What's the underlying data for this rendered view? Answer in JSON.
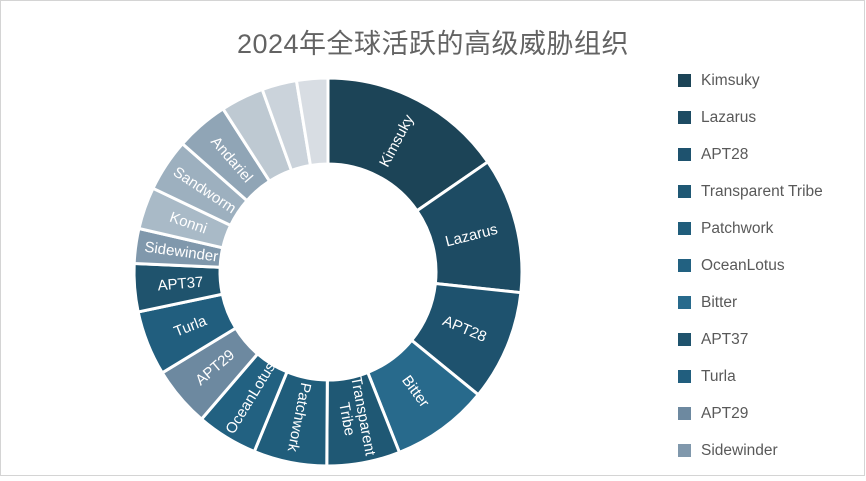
{
  "window": {
    "border_color": "#d4d4d4",
    "background": "#ffffff"
  },
  "title": {
    "text": "2024年全球活跃的高级威胁组织",
    "color": "#636363"
  },
  "chart_data": {
    "type": "pie",
    "subtype": "donut",
    "title": "2024年全球活跃的高级威胁组织",
    "rotation_start": "top",
    "direction": "clockwise",
    "legend_position": "right",
    "slice_label_color": "#ffffff",
    "slices": [
      {
        "label": "Kimsuky",
        "value_pct": 15.4,
        "color": "#1C4457"
      },
      {
        "label": "Lazarus",
        "value_pct": 11.3,
        "color": "#1D4B63"
      },
      {
        "label": "APT28",
        "value_pct": 9.2,
        "color": "#1E526E"
      },
      {
        "label": "Bitter",
        "value_pct": 8.1,
        "color": "#286A8C"
      },
      {
        "label": "Transparent Tribe",
        "value_pct": 6.1,
        "color": "#1F5874"
      },
      {
        "label": "Patchwork",
        "value_pct": 6.1,
        "color": "#205D7B"
      },
      {
        "label": "OceanLotus",
        "value_pct": 5.1,
        "color": "#226181"
      },
      {
        "label": "APT29",
        "value_pct": 5.0,
        "color": "#6D89A0"
      },
      {
        "label": "Turla",
        "value_pct": 5.4,
        "color": "#215E7E"
      },
      {
        "label": "APT37",
        "value_pct": 4.0,
        "color": "#1F536D"
      },
      {
        "label": "Sidewinder",
        "value_pct": 2.9,
        "color": "#8098AC"
      },
      {
        "label": "Konni",
        "value_pct": 3.5,
        "color": "#A9BAC7"
      },
      {
        "label": "Sandworm",
        "value_pct": 4.4,
        "color": "#9DB0BF"
      },
      {
        "label": "Andariel",
        "value_pct": 4.4,
        "color": "#90A5B6"
      },
      {
        "label": "",
        "value_pct": 3.6,
        "color": "#BEC9D2"
      },
      {
        "label": "",
        "value_pct": 2.9,
        "color": "#CBD3DB"
      },
      {
        "label": "",
        "value_pct": 2.6,
        "color": "#D8DDE3"
      }
    ]
  },
  "legend": {
    "items": [
      {
        "label": "Kimsuky",
        "color": "#1C4457"
      },
      {
        "label": "Lazarus",
        "color": "#1D4B63"
      },
      {
        "label": "APT28",
        "color": "#1E526E"
      },
      {
        "label": "Transparent Tribe",
        "color": "#1F5874"
      },
      {
        "label": "Patchwork",
        "color": "#205D7B"
      },
      {
        "label": "OceanLotus",
        "color": "#226181"
      },
      {
        "label": "Bitter",
        "color": "#286A8C"
      },
      {
        "label": "APT37",
        "color": "#1F536D"
      },
      {
        "label": "Turla",
        "color": "#215E7E"
      },
      {
        "label": "APT29",
        "color": "#6D89A0"
      },
      {
        "label": "Sidewinder",
        "color": "#8098AC"
      }
    ]
  }
}
